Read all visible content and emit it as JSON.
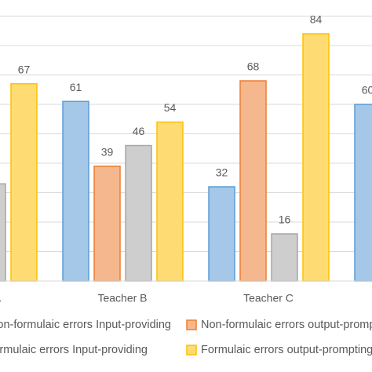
{
  "chart_data": {
    "type": "bar",
    "categories": [
      "Teacher A",
      "Teacher B",
      "Teacher C",
      null
    ],
    "series": [
      {
        "name": "Non-formulaic errors Input-providing",
        "color": "#5b9bd5",
        "values": [
          null,
          61,
          32,
          60
        ]
      },
      {
        "name": "Non-formulaic errors output-prompting",
        "color": "#ed7d31",
        "values": [
          null,
          39,
          68,
          null
        ]
      },
      {
        "name": "Formulaic errors Input-providing",
        "color": "#a5a5a5",
        "values": [
          33,
          46,
          16,
          null
        ]
      },
      {
        "name": "Formulaic errors output-prompting",
        "color": "#ffc000",
        "values": [
          67,
          54,
          84,
          null
        ]
      }
    ],
    "ylim": [
      0,
      90
    ],
    "yticks": [
      0,
      10,
      20,
      30,
      40,
      50,
      60,
      70,
      80,
      90
    ],
    "grid": true
  }
}
